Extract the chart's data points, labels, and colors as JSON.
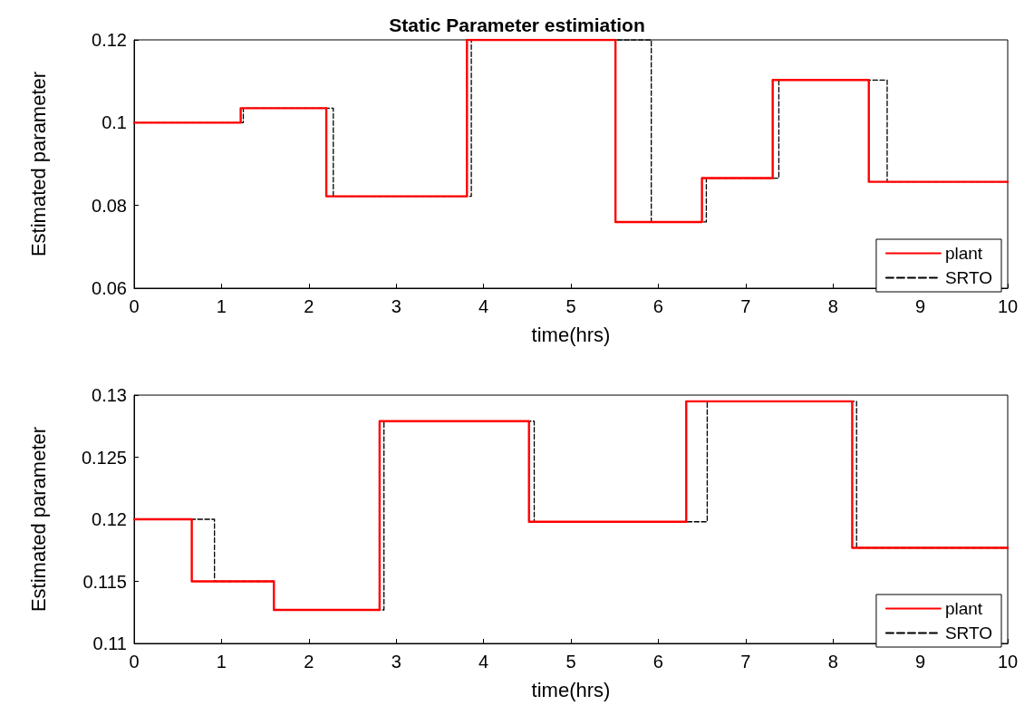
{
  "chart_data": [
    {
      "type": "step",
      "title": "Static Parameter estimiation",
      "xlabel": "time(hrs)",
      "ylabel": "Estimated parameter",
      "xlim": [
        0,
        10
      ],
      "xticks": [
        0,
        1,
        2,
        3,
        4,
        5,
        6,
        7,
        8,
        9,
        10
      ],
      "ylim": [
        0.06,
        0.12
      ],
      "yticks": [
        0.06,
        0.08,
        0.1,
        0.12
      ],
      "grid": false,
      "legend": "bottom right",
      "series": [
        {
          "name": "plant",
          "color": "#ff0000",
          "line_style": "solid",
          "x": [
            0,
            1.22,
            2.2,
            3.81,
            5.51,
            6.5,
            7.31,
            8.41,
            10
          ],
          "values": [
            0.1,
            0.1035,
            0.0822,
            0.12,
            0.076,
            0.0866,
            0.1103,
            0.0857,
            0.0857
          ]
        },
        {
          "name": "SRTO",
          "color": "#000000",
          "line_style": "dashed",
          "x": [
            0,
            1.25,
            2.28,
            3.86,
            5.92,
            6.55,
            7.38,
            8.62,
            10
          ],
          "values": [
            0.1,
            0.1035,
            0.0822,
            0.12,
            0.076,
            0.0866,
            0.1103,
            0.0857,
            0.0857
          ]
        }
      ]
    },
    {
      "type": "step",
      "xlabel": "time(hrs)",
      "ylabel": "Estimated parameter",
      "xlim": [
        0,
        10
      ],
      "xticks": [
        0,
        1,
        2,
        3,
        4,
        5,
        6,
        7,
        8,
        9,
        10
      ],
      "ylim": [
        0.11,
        0.13
      ],
      "yticks": [
        0.11,
        0.115,
        0.12,
        0.125,
        0.13
      ],
      "grid": false,
      "legend": "bottom right",
      "series": [
        {
          "name": "plant",
          "color": "#ff0000",
          "line_style": "solid",
          "x": [
            0,
            0.66,
            1.6,
            2.81,
            4.52,
            6.32,
            8.22,
            10
          ],
          "values": [
            0.12,
            0.115,
            0.1127,
            0.1279,
            0.1198,
            0.1295,
            0.1177,
            0.1177
          ]
        },
        {
          "name": "SRTO",
          "color": "#000000",
          "line_style": "dashed",
          "x": [
            0,
            0.92,
            1.6,
            2.86,
            4.58,
            6.56,
            8.27,
            10
          ],
          "values": [
            0.12,
            0.115,
            0.1127,
            0.1279,
            0.1198,
            0.1295,
            0.1177,
            0.1177
          ]
        }
      ]
    }
  ]
}
